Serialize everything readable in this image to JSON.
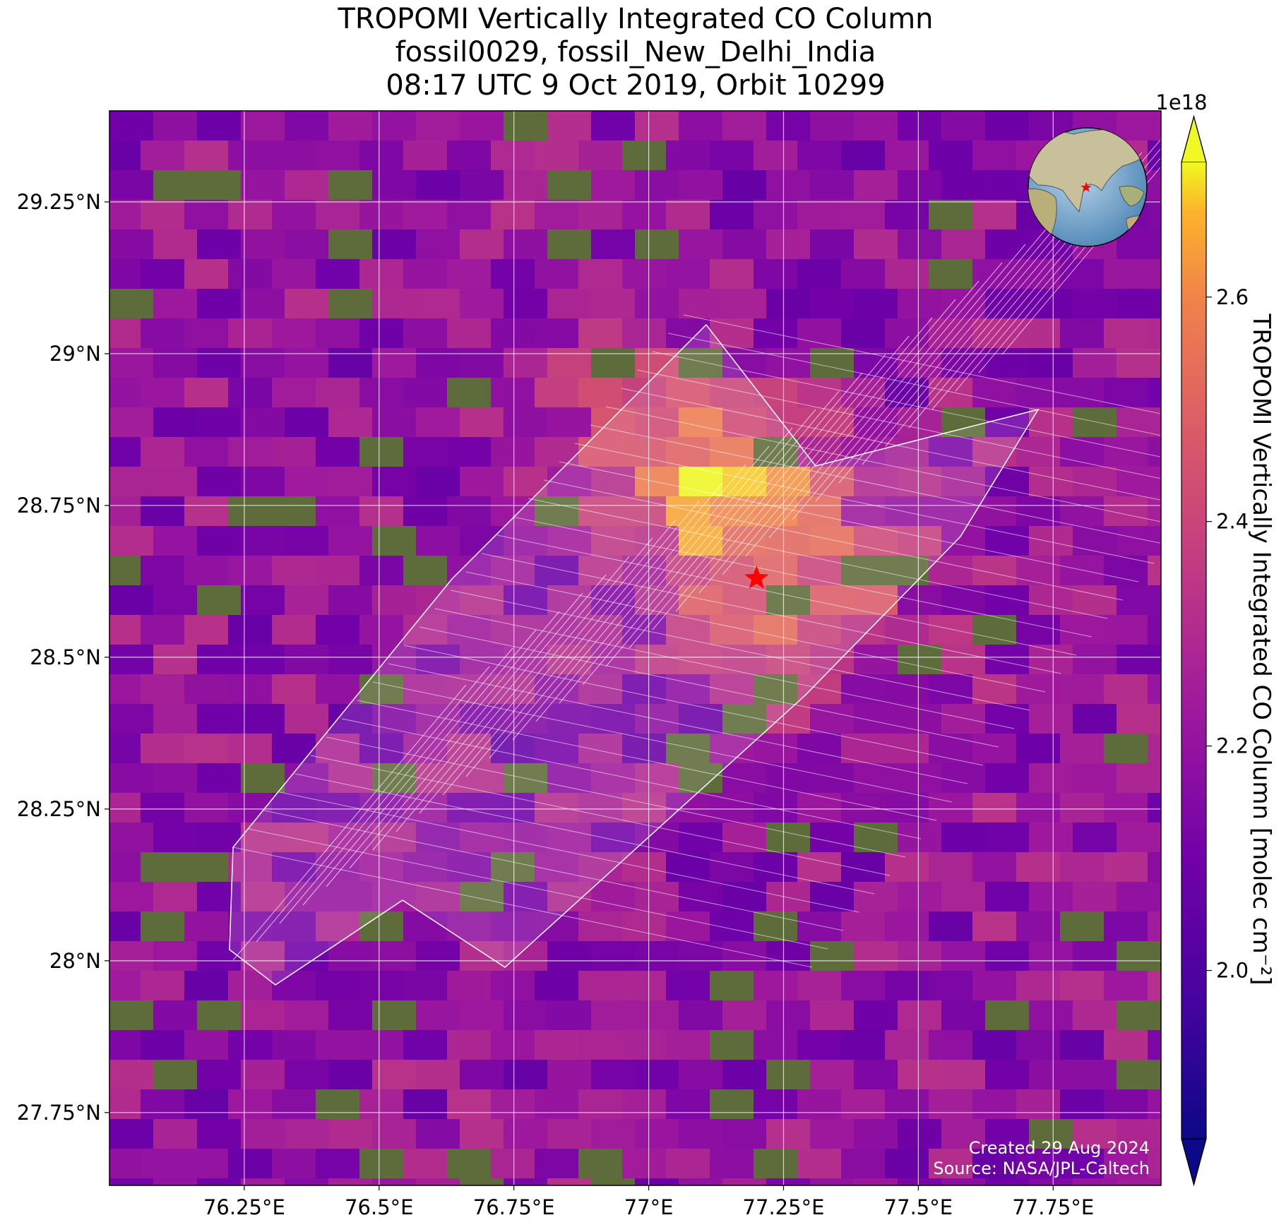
{
  "title": {
    "line1": "TROPOMI Vertically Integrated CO Column",
    "line2": "fossil0029, fossil_New_Delhi_India",
    "line3": "08:17 UTC 9 Oct 2019, Orbit 10299"
  },
  "map": {
    "lon_range": [
      76.0,
      77.95
    ],
    "lat_range": [
      27.63,
      29.4
    ],
    "x_ticks": [
      {
        "value": 76.25,
        "label": "76.25°E"
      },
      {
        "value": 76.5,
        "label": "76.5°E"
      },
      {
        "value": 76.75,
        "label": "76.75°E"
      },
      {
        "value": 77.0,
        "label": "77°E"
      },
      {
        "value": 77.25,
        "label": "77.25°E"
      },
      {
        "value": 77.5,
        "label": "77.5°E"
      },
      {
        "value": 77.75,
        "label": "77.75°E"
      }
    ],
    "y_ticks": [
      {
        "value": 29.25,
        "label": "29.25°N"
      },
      {
        "value": 29.0,
        "label": "29°N"
      },
      {
        "value": 28.75,
        "label": "28.75°N"
      },
      {
        "value": 28.5,
        "label": "28.5°N"
      },
      {
        "value": 28.25,
        "label": "28.25°N"
      },
      {
        "value": 28.0,
        "label": "28°N"
      },
      {
        "value": 27.75,
        "label": "27.75°N"
      }
    ],
    "grid": true,
    "site_marker": {
      "lon": 77.2,
      "lat": 28.63,
      "color": "#ff0000",
      "icon": "star-icon"
    },
    "inset": {
      "type": "globe",
      "highlight": "india-star",
      "placement": "top-right"
    },
    "credits": {
      "created": "Created 29 Aug 2024",
      "source": "Source: NASA/JPL-Caltech"
    }
  },
  "colorbar": {
    "label": "TROPOMI Vertically Integrated CO Column [molec cm⁻²]",
    "exponent": "1e18",
    "range": [
      1.85,
      2.72
    ],
    "ticks": [
      {
        "value": 2.0,
        "label": "2.0"
      },
      {
        "value": 2.2,
        "label": "2.2"
      },
      {
        "value": 2.4,
        "label": "2.4"
      },
      {
        "value": 2.6,
        "label": "2.6"
      }
    ],
    "colormap": "plasma",
    "extend": "both"
  },
  "chart_data": {
    "type": "heatmap",
    "units": "molec cm⁻² (×1e18)",
    "xlabel": "",
    "ylabel": "",
    "xlim": [
      76.0,
      77.95
    ],
    "ylim": [
      27.63,
      29.4
    ]
  }
}
